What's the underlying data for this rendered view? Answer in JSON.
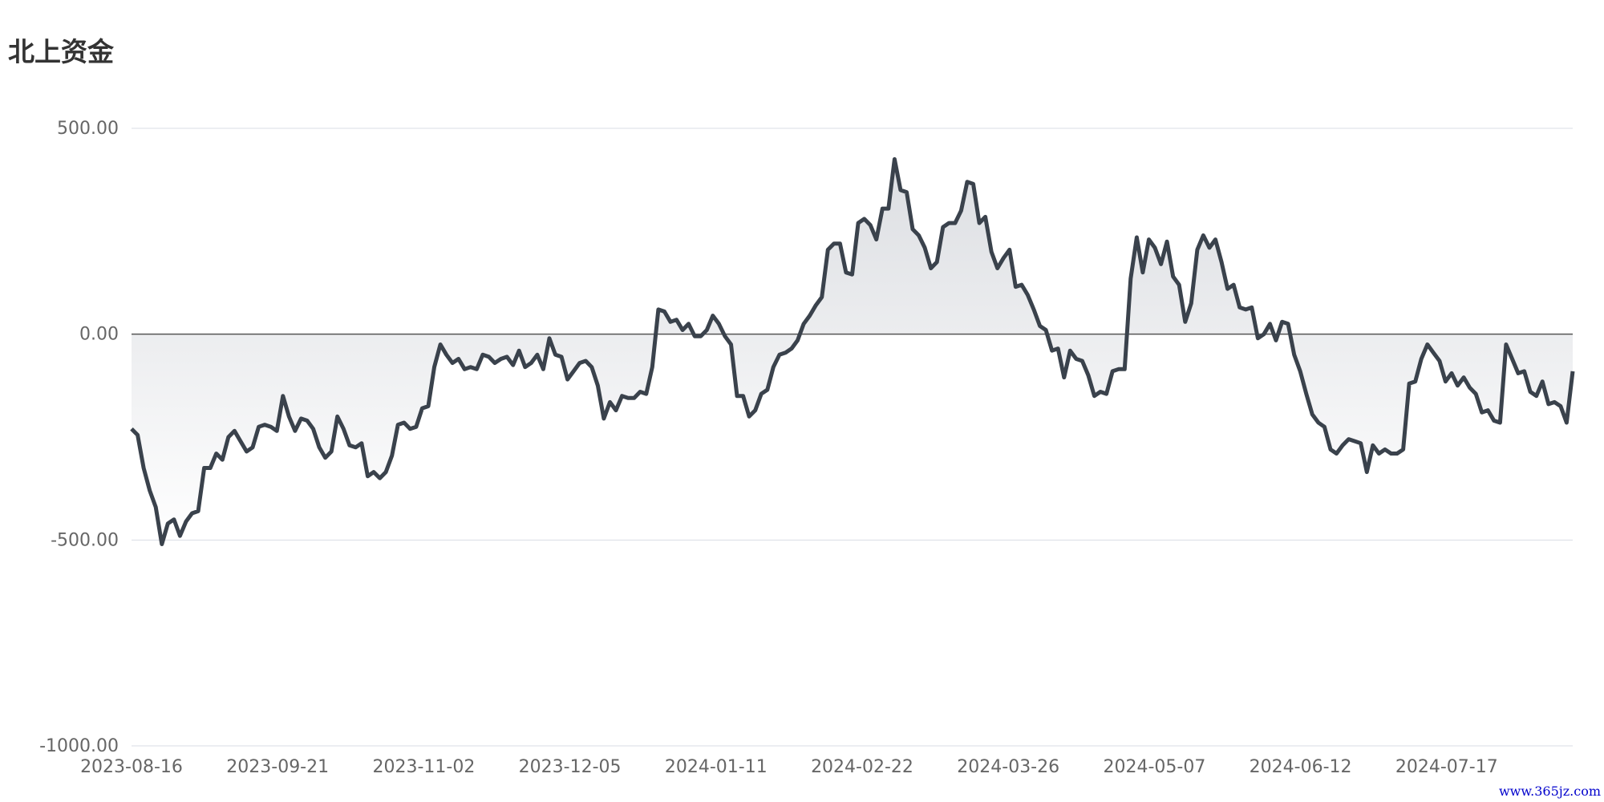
{
  "colors": {
    "line": "#3a424c",
    "grid": "#d9dde4",
    "zero_line": "#555555",
    "axis_text": "#666666",
    "area_top": "#dcdee2",
    "area_bottom": "#ffffff"
  },
  "chart_data": {
    "type": "area",
    "title": "北上资金",
    "y_ticks": [
      "500.00",
      "0.00",
      "-500.00",
      "-1000.00"
    ],
    "ylim": [
      -1000,
      500
    ],
    "x_tick_labels": [
      "2023-08-16",
      "2023-09-21",
      "2023-11-02",
      "2023-12-05",
      "2024-01-11",
      "2024-02-22",
      "2024-03-26",
      "2024-05-07",
      "2024-06-12",
      "2024-07-17"
    ],
    "grid": true,
    "series": [
      {
        "values": [
          -230,
          -245,
          -325,
          -380,
          -420,
          -510,
          -460,
          -450,
          -490,
          -455,
          -435,
          -430,
          -325,
          -325,
          -290,
          -305,
          -250,
          -235,
          -260,
          -285,
          -275,
          -225,
          -220,
          -225,
          -235,
          -150,
          -200,
          -235,
          -205,
          -210,
          -230,
          -275,
          -300,
          -285,
          -200,
          -230,
          -270,
          -275,
          -265,
          -345,
          -335,
          -350,
          -335,
          -295,
          -220,
          -215,
          -230,
          -225,
          -180,
          -175,
          -80,
          -25,
          -50,
          -70,
          -60,
          -85,
          -80,
          -85,
          -50,
          -55,
          -70,
          -60,
          -55,
          -75,
          -40,
          -80,
          -70,
          -50,
          -85,
          -10,
          -50,
          -55,
          -110,
          -90,
          -70,
          -65,
          -80,
          -125,
          -205,
          -165,
          -185,
          -150,
          -155,
          -155,
          -140,
          -145,
          -80,
          60,
          55,
          30,
          35,
          10,
          25,
          -5,
          -5,
          10,
          45,
          25,
          -5,
          -25,
          -150,
          -150,
          -200,
          -185,
          -145,
          -135,
          -80,
          -50,
          -45,
          -35,
          -15,
          25,
          45,
          70,
          90,
          205,
          220,
          220,
          150,
          145,
          270,
          280,
          265,
          230,
          305,
          305,
          425,
          350,
          345,
          255,
          240,
          210,
          160,
          175,
          260,
          270,
          270,
          300,
          370,
          365,
          270,
          285,
          200,
          160,
          185,
          205,
          115,
          120,
          95,
          60,
          20,
          10,
          -40,
          -35,
          -105,
          -40,
          -60,
          -65,
          -100,
          -150,
          -140,
          -145,
          -90,
          -85,
          -85,
          135,
          235,
          150,
          230,
          210,
          170,
          225,
          140,
          120,
          30,
          75,
          205,
          240,
          210,
          230,
          175,
          110,
          120,
          65,
          60,
          65,
          -10,
          0,
          25,
          -15,
          30,
          25,
          -50,
          -90,
          -145,
          -195,
          -215,
          -225,
          -280,
          -290,
          -270,
          -255,
          -260,
          -265,
          -335,
          -270,
          -290,
          -280,
          -290,
          -290,
          -280,
          -120,
          -115,
          -60,
          -25,
          -45,
          -65,
          -115,
          -95,
          -125,
          -105,
          -130,
          -145,
          -190,
          -185,
          -210,
          -215,
          -25,
          -60,
          -95,
          -90,
          -140,
          -150,
          -115,
          -170,
          -165,
          -175,
          -215,
          -90
        ]
      }
    ]
  },
  "watermark": "www.365jz.com"
}
